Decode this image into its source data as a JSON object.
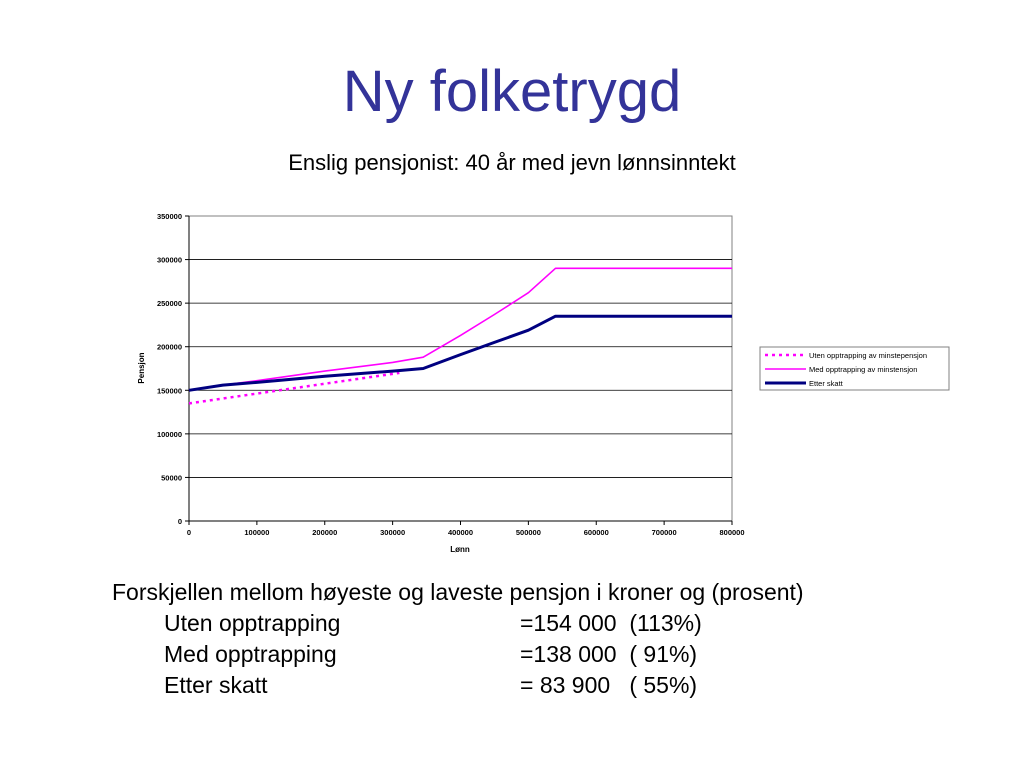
{
  "slide": {
    "title": "Ny folketrygd",
    "subtitle": "Enslig pensjonist: 40 år med jevn lønnsinntekt"
  },
  "summary": {
    "heading": "Forskjellen mellom høyeste og laveste pensjon i kroner og (prosent)",
    "rows": [
      {
        "label": "Uten opptrapping",
        "value": "=154 000  (113%)"
      },
      {
        "label": "Med opptrapping",
        "value": "=138 000  ( 91%)"
      },
      {
        "label": "Etter skatt",
        "value": "= 83 900   ( 55%)"
      }
    ]
  },
  "chart_data": {
    "type": "line",
    "xlabel": "Lønn",
    "ylabel": "Pensjon",
    "xlim": [
      0,
      800000
    ],
    "ylim": [
      0,
      350000
    ],
    "xticks": [
      "0",
      "100000",
      "200000",
      "300000",
      "400000",
      "500000",
      "600000",
      "700000",
      "800000"
    ],
    "yticks": [
      "0",
      "50000",
      "100000",
      "150000",
      "200000",
      "250000",
      "300000",
      "350000"
    ],
    "grid": "horizontal",
    "legend_position": "right",
    "series": [
      {
        "name": "Uten opptrapping av minstepensjon",
        "color": "#ff00ff",
        "style": "dotted",
        "x": [
          0,
          310000
        ],
        "y": [
          135000,
          170000
        ]
      },
      {
        "name": "Med opptrapping av minstensjon",
        "color": "#ff00ff",
        "style": "solid",
        "x": [
          0,
          50000,
          100000,
          200000,
          300000,
          345000,
          400000,
          450000,
          500000,
          540000,
          800000
        ],
        "y": [
          150000,
          156000,
          161000,
          172000,
          182000,
          188000,
          213000,
          237000,
          262000,
          290000,
          290000
        ]
      },
      {
        "name": "Etter skatt",
        "color": "#000080",
        "style": "solid",
        "x": [
          0,
          50000,
          100000,
          200000,
          300000,
          345000,
          400000,
          450000,
          500000,
          540000,
          800000
        ],
        "y": [
          150000,
          156000,
          159000,
          166000,
          172000,
          175000,
          191000,
          205000,
          219000,
          235000,
          235000
        ]
      }
    ]
  }
}
